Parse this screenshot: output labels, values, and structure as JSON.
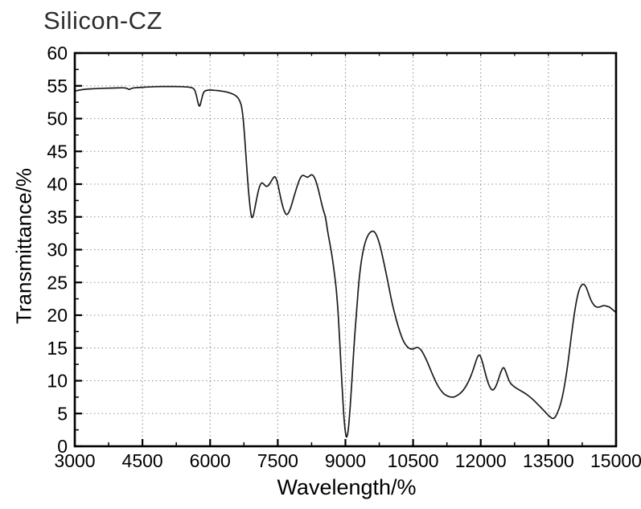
{
  "page_title": "Silicon-CZ",
  "chart_data": {
    "type": "line",
    "title": "Silicon-CZ",
    "xlabel": "Wavelength/%",
    "ylabel": "Transmittance/%",
    "xlim": [
      3000,
      15000
    ],
    "ylim": [
      0,
      60
    ],
    "x_major_ticks": [
      3000,
      4500,
      6000,
      7500,
      9000,
      10500,
      12000,
      13500,
      15000
    ],
    "x_minor_step": 750,
    "y_major_ticks": [
      0,
      5,
      10,
      15,
      20,
      25,
      30,
      35,
      40,
      45,
      50,
      55,
      60
    ],
    "y_minor_step": 2.5,
    "grid": "dotted-at-major-ticks",
    "legend": "none",
    "frame": "full-box",
    "colors": {
      "line": "#1c1c1c",
      "grid": "#8a8a8a",
      "axis": "#000000",
      "title": "#2d2d2d"
    },
    "series": [
      {
        "name": "Silicon-CZ transmittance",
        "points": [
          [
            3000,
            54.2
          ],
          [
            3100,
            54.35
          ],
          [
            3250,
            54.5
          ],
          [
            3400,
            54.55
          ],
          [
            3550,
            54.6
          ],
          [
            3700,
            54.65
          ],
          [
            3850,
            54.65
          ],
          [
            4000,
            54.7
          ],
          [
            4100,
            54.7
          ],
          [
            4160,
            54.6
          ],
          [
            4210,
            54.4
          ],
          [
            4260,
            54.65
          ],
          [
            4400,
            54.75
          ],
          [
            4550,
            54.8
          ],
          [
            4700,
            54.85
          ],
          [
            4850,
            54.9
          ],
          [
            5000,
            54.9
          ],
          [
            5150,
            54.9
          ],
          [
            5300,
            54.9
          ],
          [
            5450,
            54.85
          ],
          [
            5550,
            54.8
          ],
          [
            5650,
            54.6
          ],
          [
            5700,
            53.5
          ],
          [
            5740,
            52.1
          ],
          [
            5770,
            51.8
          ],
          [
            5800,
            52.6
          ],
          [
            5840,
            53.8
          ],
          [
            5880,
            54.25
          ],
          [
            5950,
            54.35
          ],
          [
            6050,
            54.35
          ],
          [
            6150,
            54.3
          ],
          [
            6250,
            54.2
          ],
          [
            6350,
            54.1
          ],
          [
            6450,
            53.9
          ],
          [
            6550,
            53.6
          ],
          [
            6620,
            53.2
          ],
          [
            6670,
            52.5
          ],
          [
            6700,
            51.8
          ],
          [
            6730,
            50.3
          ],
          [
            6760,
            47.8
          ],
          [
            6790,
            44.8
          ],
          [
            6820,
            41.8
          ],
          [
            6850,
            39.0
          ],
          [
            6880,
            36.8
          ],
          [
            6910,
            35.2
          ],
          [
            6930,
            34.8
          ],
          [
            6960,
            35.2
          ],
          [
            7000,
            36.6
          ],
          [
            7050,
            38.4
          ],
          [
            7100,
            39.8
          ],
          [
            7150,
            40.3
          ],
          [
            7200,
            39.9
          ],
          [
            7250,
            39.6
          ],
          [
            7300,
            39.8
          ],
          [
            7350,
            40.4
          ],
          [
            7400,
            41.0
          ],
          [
            7440,
            41.2
          ],
          [
            7480,
            40.6
          ],
          [
            7520,
            39.4
          ],
          [
            7570,
            37.7
          ],
          [
            7620,
            36.3
          ],
          [
            7670,
            35.5
          ],
          [
            7700,
            35.3
          ],
          [
            7740,
            35.6
          ],
          [
            7790,
            36.4
          ],
          [
            7850,
            37.9
          ],
          [
            7920,
            39.5
          ],
          [
            7990,
            40.9
          ],
          [
            8050,
            41.4
          ],
          [
            8110,
            41.2
          ],
          [
            8160,
            41.0
          ],
          [
            8210,
            41.3
          ],
          [
            8260,
            41.5
          ],
          [
            8310,
            41.1
          ],
          [
            8360,
            40.2
          ],
          [
            8410,
            38.9
          ],
          [
            8460,
            37.4
          ],
          [
            8510,
            36.0
          ],
          [
            8560,
            35.0
          ],
          [
            8610,
            32.6
          ],
          [
            8660,
            30.8
          ],
          [
            8710,
            28.8
          ],
          [
            8760,
            26.2
          ],
          [
            8800,
            23.8
          ],
          [
            8830,
            21.2
          ],
          [
            8860,
            17.8
          ],
          [
            8890,
            13.8
          ],
          [
            8920,
            9.8
          ],
          [
            8950,
            6.2
          ],
          [
            8980,
            3.2
          ],
          [
            9010,
            1.6
          ],
          [
            9030,
            1.3
          ],
          [
            9060,
            2.2
          ],
          [
            9090,
            4.5
          ],
          [
            9120,
            7.5
          ],
          [
            9150,
            10.8
          ],
          [
            9180,
            14.2
          ],
          [
            9220,
            18.2
          ],
          [
            9260,
            21.8
          ],
          [
            9300,
            25.3
          ],
          [
            9350,
            28.2
          ],
          [
            9400,
            30.1
          ],
          [
            9450,
            31.4
          ],
          [
            9500,
            32.2
          ],
          [
            9550,
            32.7
          ],
          [
            9620,
            32.9
          ],
          [
            9680,
            32.4
          ],
          [
            9740,
            31.3
          ],
          [
            9800,
            29.7
          ],
          [
            9860,
            27.8
          ],
          [
            9920,
            25.8
          ],
          [
            9980,
            23.7
          ],
          [
            10040,
            21.7
          ],
          [
            10100,
            20.0
          ],
          [
            10160,
            18.5
          ],
          [
            10220,
            17.2
          ],
          [
            10280,
            16.1
          ],
          [
            10340,
            15.4
          ],
          [
            10400,
            15.0
          ],
          [
            10460,
            14.8
          ],
          [
            10520,
            14.9
          ],
          [
            10580,
            15.1
          ],
          [
            10640,
            15.0
          ],
          [
            10700,
            14.5
          ],
          [
            10760,
            13.7
          ],
          [
            10820,
            12.8
          ],
          [
            10880,
            11.8
          ],
          [
            10940,
            10.8
          ],
          [
            11000,
            9.9
          ],
          [
            11060,
            9.1
          ],
          [
            11120,
            8.5
          ],
          [
            11180,
            8.0
          ],
          [
            11250,
            7.7
          ],
          [
            11330,
            7.5
          ],
          [
            11410,
            7.5
          ],
          [
            11490,
            7.8
          ],
          [
            11570,
            8.2
          ],
          [
            11650,
            8.9
          ],
          [
            11730,
            9.9
          ],
          [
            11810,
            11.2
          ],
          [
            11870,
            12.5
          ],
          [
            11930,
            13.7
          ],
          [
            11970,
            14.0
          ],
          [
            12010,
            13.5
          ],
          [
            12060,
            12.3
          ],
          [
            12110,
            10.9
          ],
          [
            12160,
            9.7
          ],
          [
            12210,
            8.9
          ],
          [
            12260,
            8.5
          ],
          [
            12310,
            8.8
          ],
          [
            12360,
            9.5
          ],
          [
            12410,
            10.6
          ],
          [
            12460,
            11.6
          ],
          [
            12500,
            12.1
          ],
          [
            12540,
            11.7
          ],
          [
            12590,
            10.7
          ],
          [
            12640,
            9.8
          ],
          [
            12700,
            9.3
          ],
          [
            12780,
            8.9
          ],
          [
            12880,
            8.5
          ],
          [
            12980,
            8.1
          ],
          [
            13080,
            7.6
          ],
          [
            13180,
            7.0
          ],
          [
            13280,
            6.3
          ],
          [
            13380,
            5.6
          ],
          [
            13470,
            4.9
          ],
          [
            13550,
            4.4
          ],
          [
            13600,
            4.2
          ],
          [
            13650,
            4.4
          ],
          [
            13700,
            5.1
          ],
          [
            13760,
            6.2
          ],
          [
            13820,
            7.8
          ],
          [
            13880,
            10.2
          ],
          [
            13930,
            12.5
          ],
          [
            13980,
            15.3
          ],
          [
            14030,
            18.0
          ],
          [
            14080,
            20.5
          ],
          [
            14130,
            22.5
          ],
          [
            14180,
            23.9
          ],
          [
            14230,
            24.6
          ],
          [
            14280,
            24.8
          ],
          [
            14330,
            24.4
          ],
          [
            14380,
            23.5
          ],
          [
            14430,
            22.5
          ],
          [
            14480,
            21.8
          ],
          [
            14540,
            21.3
          ],
          [
            14600,
            21.2
          ],
          [
            14660,
            21.3
          ],
          [
            14720,
            21.5
          ],
          [
            14780,
            21.4
          ],
          [
            14840,
            21.3
          ],
          [
            14900,
            21.0
          ],
          [
            14950,
            20.7
          ],
          [
            15000,
            20.4
          ]
        ]
      }
    ]
  }
}
